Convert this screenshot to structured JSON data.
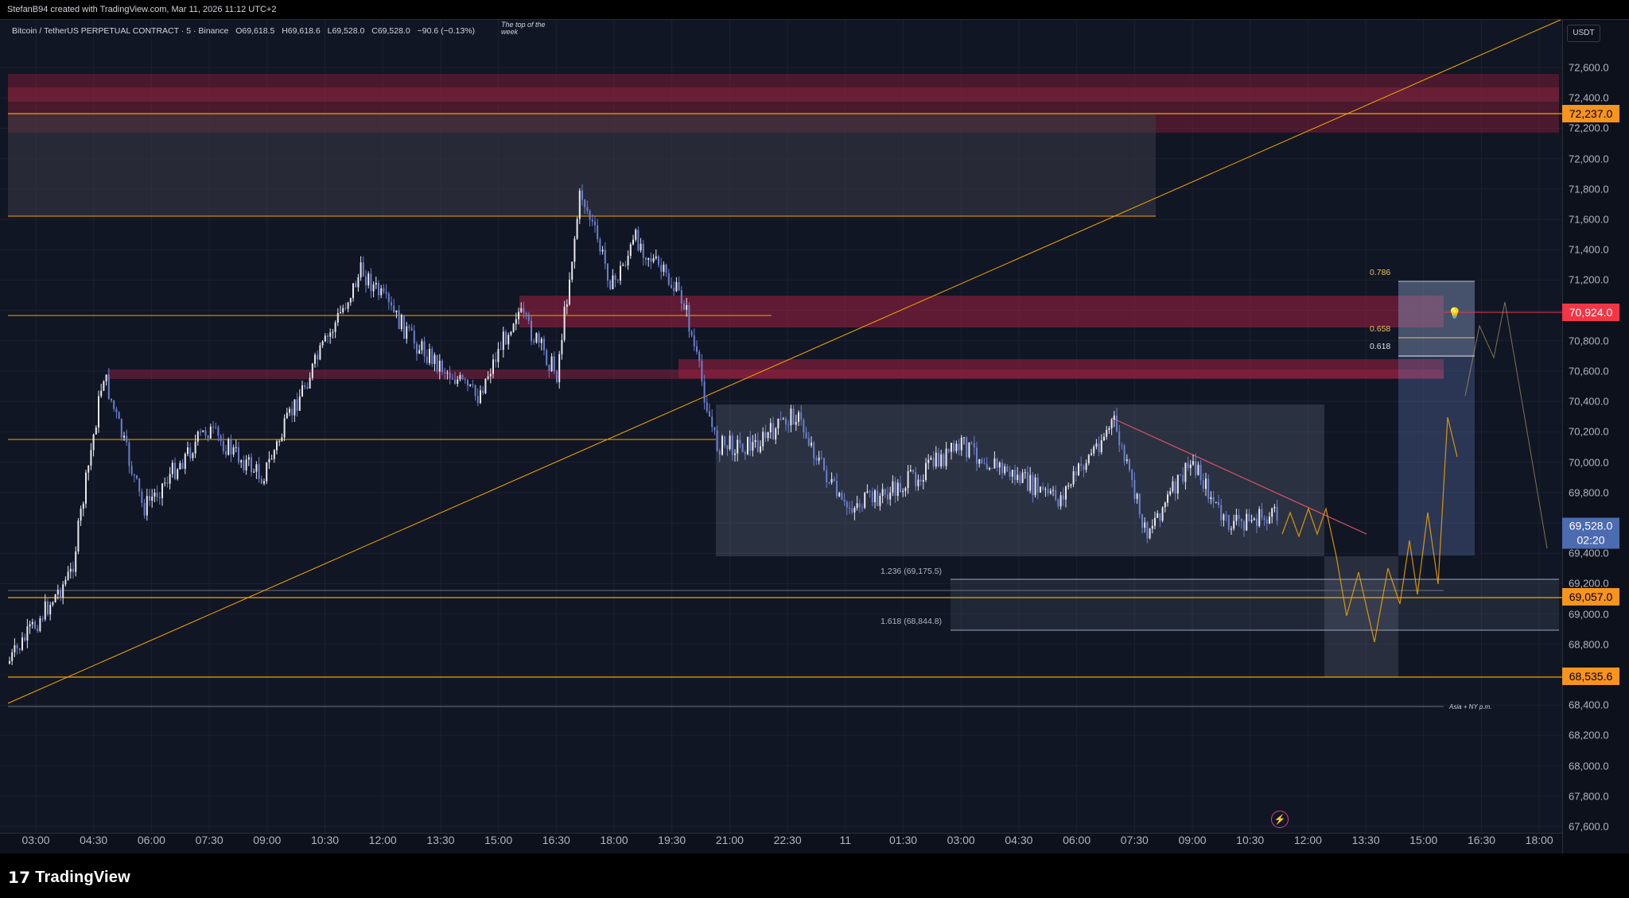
{
  "header": {
    "credit": "StefanB94 created with TradingView.com, Mar 11, 2026 11:12 UTC+2"
  },
  "symbol": {
    "name": "Bitcoin / TetherUS PERPETUAL CONTRACT · 5 · Binance",
    "open": "O69,618.5",
    "high": "H69,618.6",
    "low": "L69,528.0",
    "close": "C69,528.0",
    "change": "−90.6 (−0.13%)"
  },
  "notes": {
    "top_of_week_line1": "The top of the",
    "top_of_week_line2": "week",
    "session": "Asia + NY p.m."
  },
  "axis": {
    "currency": "USDT",
    "price_labels": [
      "72,600.0",
      "72,400.0",
      "72,200.0",
      "72,000.0",
      "71,800.0",
      "71,600.0",
      "71,400.0",
      "71,200.0",
      "71,000.0",
      "70,800.0",
      "70,600.0",
      "70,400.0",
      "70,200.0",
      "70,000.0",
      "69,800.0",
      "69,600.0",
      "69,400.0",
      "69,200.0",
      "69,000.0",
      "68,800.0",
      "68,600.0",
      "68,400.0",
      "68,200.0",
      "68,000.0",
      "67,800.0",
      "67,600.0"
    ],
    "time_labels": [
      "03:00",
      "04:30",
      "06:00",
      "07:30",
      "09:00",
      "10:30",
      "12:00",
      "13:30",
      "15:00",
      "16:30",
      "18:00",
      "19:30",
      "21:00",
      "22:30",
      "11",
      "01:30",
      "03:00",
      "04:30",
      "06:00",
      "07:30",
      "09:00",
      "10:30",
      "12:00",
      "13:30",
      "15:00",
      "16:30",
      "18:00"
    ]
  },
  "badges": {
    "level_high": "72,237.0",
    "level_resist": "70,924.0",
    "current_price": "69,528.0",
    "countdown": "02:20",
    "level_mid": "69,057.0",
    "level_low": "68,535.6"
  },
  "fib": {
    "l786": "0.786",
    "l658": "0.658",
    "l618": "0.618",
    "ext1236": "1.236 (69,175.5)",
    "ext1618": "1.618 (68,844.8)"
  },
  "footer": {
    "brand": "TradingView"
  },
  "colors": {
    "background": "#131722",
    "up_candle": "#e8e8ee",
    "down_candle": "#6b7fd0",
    "resistance_zone": "#d01f3c",
    "level_line": "#f7a600",
    "badge_orange": "#f7941d",
    "badge_red": "#f23645",
    "current_price_badge": "#4c6bb0"
  }
}
